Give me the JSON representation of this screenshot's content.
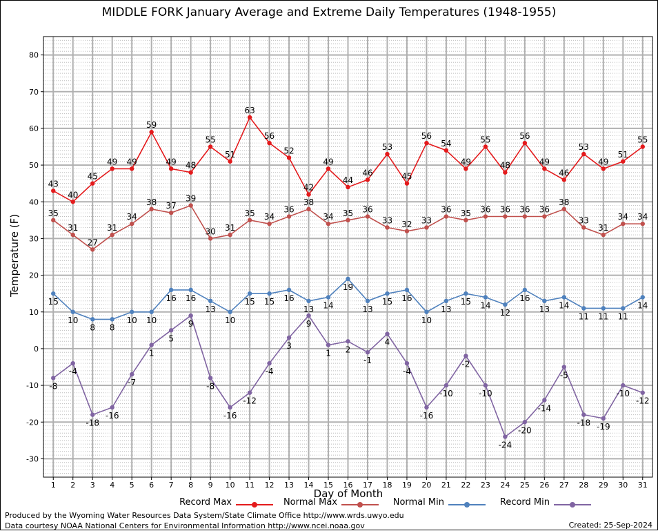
{
  "chart_data": {
    "type": "line",
    "title": "MIDDLE FORK January Average and Extreme Daily Temperatures (1948-1955)",
    "xlabel": "Day of Month",
    "ylabel": "Temperature (F)",
    "x": [
      1,
      2,
      3,
      4,
      5,
      6,
      7,
      8,
      9,
      10,
      11,
      12,
      13,
      14,
      15,
      16,
      17,
      18,
      19,
      20,
      21,
      22,
      23,
      24,
      25,
      26,
      27,
      28,
      29,
      30,
      31
    ],
    "xlim": [
      0.5,
      31.5
    ],
    "ylim": [
      -35,
      85
    ],
    "yticks": [
      -30,
      -20,
      -10,
      0,
      10,
      20,
      30,
      40,
      50,
      60,
      70,
      80
    ],
    "grid": true,
    "legend_position": "bottom",
    "series": [
      {
        "name": "Record Max",
        "color": "#e41a1c",
        "label_pos": "above",
        "values": [
          43,
          40,
          45,
          49,
          49,
          59,
          49,
          48,
          55,
          51,
          63,
          56,
          52,
          42,
          49,
          44,
          46,
          53,
          45,
          56,
          54,
          49,
          55,
          48,
          56,
          49,
          46,
          53,
          49,
          51,
          55
        ]
      },
      {
        "name": "Normal Max",
        "color": "#c0504d",
        "label_pos": "above",
        "values": [
          35,
          31,
          27,
          31,
          34,
          38,
          37,
          39,
          30,
          31,
          35,
          34,
          36,
          38,
          34,
          35,
          36,
          33,
          32,
          33,
          36,
          35,
          36,
          36,
          36,
          36,
          38,
          33,
          31,
          34,
          34
        ]
      },
      {
        "name": "Normal Min",
        "color": "#4f81bd",
        "label_pos": "below",
        "values": [
          15,
          10,
          8,
          8,
          10,
          10,
          16,
          16,
          13,
          10,
          15,
          15,
          16,
          13,
          14,
          19,
          13,
          15,
          16,
          10,
          13,
          15,
          14,
          12,
          16,
          13,
          14,
          11,
          11,
          11,
          14
        ]
      },
      {
        "name": "Record Min",
        "color": "#8064a2",
        "label_pos": "below",
        "values": [
          -8,
          -4,
          -18,
          -16,
          -7,
          1,
          5,
          9,
          -8,
          -16,
          -12,
          -4,
          3,
          9,
          1,
          2,
          -1,
          4,
          -4,
          -16,
          -10,
          -2,
          -10,
          -24,
          -20,
          -14,
          -5,
          -18,
          -19,
          -10,
          -12
        ]
      }
    ]
  },
  "footer": {
    "line1": "Produced by the Wyoming Water Resources Data System/State Climate Office http://www.wrds.uwyo.edu",
    "line2": "Data courtesy NOAA National Centers for Environmental Information http://www.ncei.noaa.gov",
    "created": "Created:  25-Sep-2024"
  }
}
